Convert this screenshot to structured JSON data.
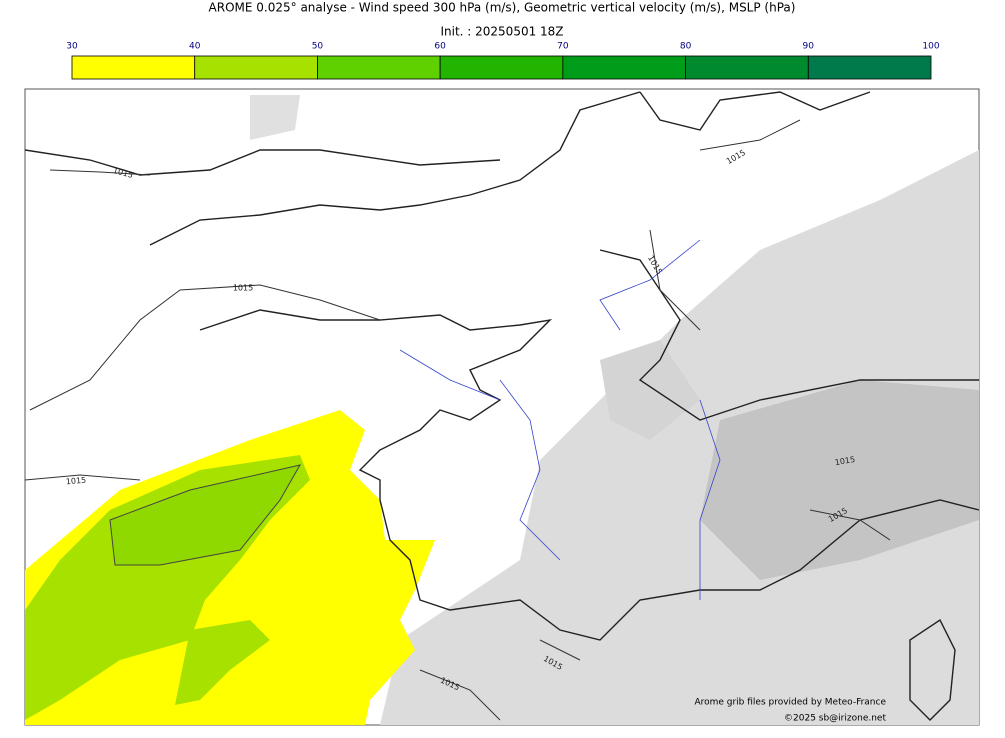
{
  "title": "AROME 0.025° analyse - Wind speed 300 hPa (m/s), Geometric vertical velocity (m/s), MSLP (hPa)",
  "subtitle": "Init. : 20250501 18Z",
  "colorbar": {
    "ticks": [
      30,
      40,
      50,
      60,
      70,
      80,
      90,
      100
    ],
    "colors": [
      "#ffff00",
      "#a6e100",
      "#5fd000",
      "#22b500",
      "#009d1a",
      "#008a2e",
      "#007a4a"
    ]
  },
  "isobar_labels": [
    "1015",
    "1015",
    "1015",
    "1015",
    "1015",
    "1015",
    "1015",
    "1015",
    "1015"
  ],
  "credits": [
    "Arome grib files provided by Meteo-France",
    "©2025 sb@irizone.net"
  ]
}
